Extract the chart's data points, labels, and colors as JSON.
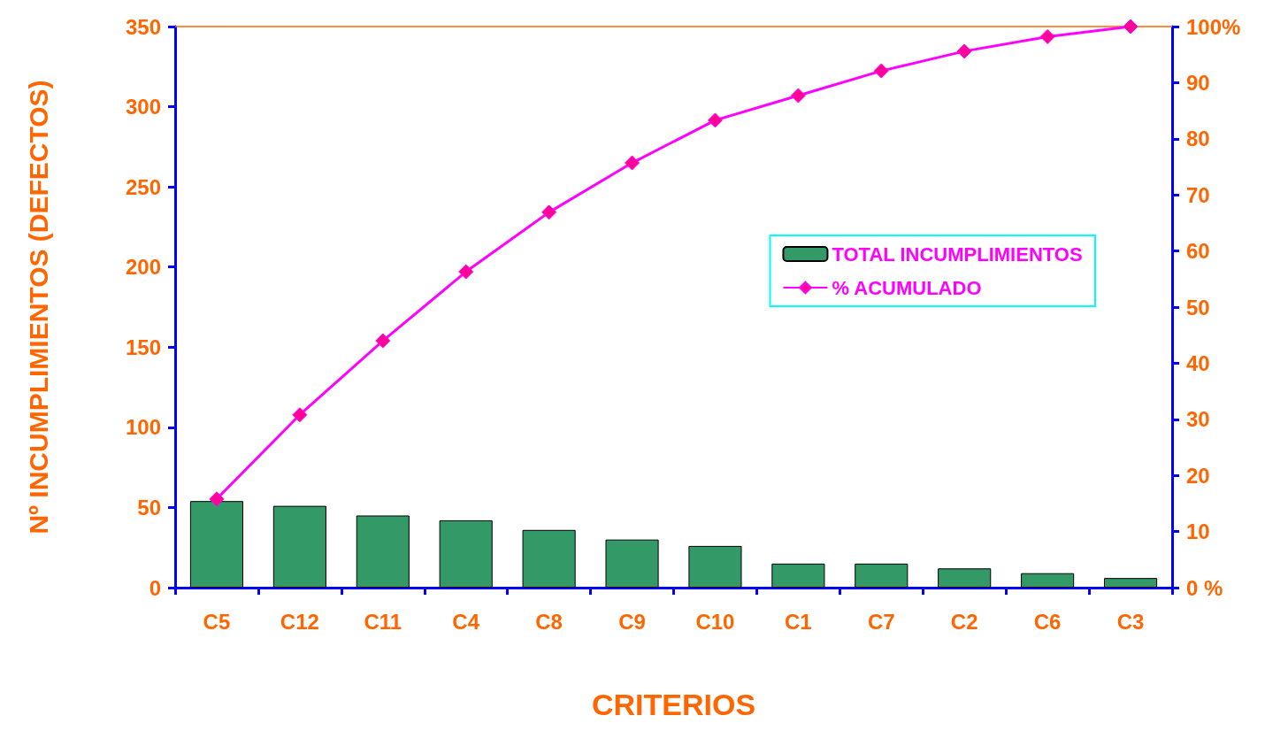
{
  "chart_data": {
    "type": "bar",
    "xlabel": "CRITERIOS",
    "ylabel": "Nº INCUMPLIMIENTOS (DEFECTOS)",
    "categories": [
      "C5",
      "C12",
      "C11",
      "C4",
      "C8",
      "C9",
      "C10",
      "C1",
      "C7",
      "C2",
      "C6",
      "C3"
    ],
    "series": [
      {
        "name": "TOTAL INCUMPLIMIENTOS",
        "color": "#339966",
        "values": [
          54,
          51,
          45,
          42,
          36,
          30,
          26,
          15,
          15,
          12,
          9,
          6
        ]
      },
      {
        "name": "% ACUMULADO",
        "type": "line",
        "axis": "y2",
        "color": "#ff00ff",
        "marker": "diamond",
        "values": [
          15.8,
          30.8,
          44.0,
          56.3,
          66.9,
          75.7,
          83.3,
          87.7,
          92.1,
          95.6,
          98.2,
          100
        ]
      }
    ],
    "ylim": [
      0,
      350
    ],
    "yticks": [
      0,
      50,
      100,
      150,
      200,
      250,
      300,
      350
    ],
    "y2lim": [
      0,
      100
    ],
    "y2ticks": [
      {
        "value": 0,
        "label": "0 %"
      },
      10,
      20,
      30,
      40,
      50,
      60,
      70,
      80,
      90,
      {
        "value": 100,
        "label": "100%"
      }
    ],
    "grid": false,
    "legend": "right"
  }
}
